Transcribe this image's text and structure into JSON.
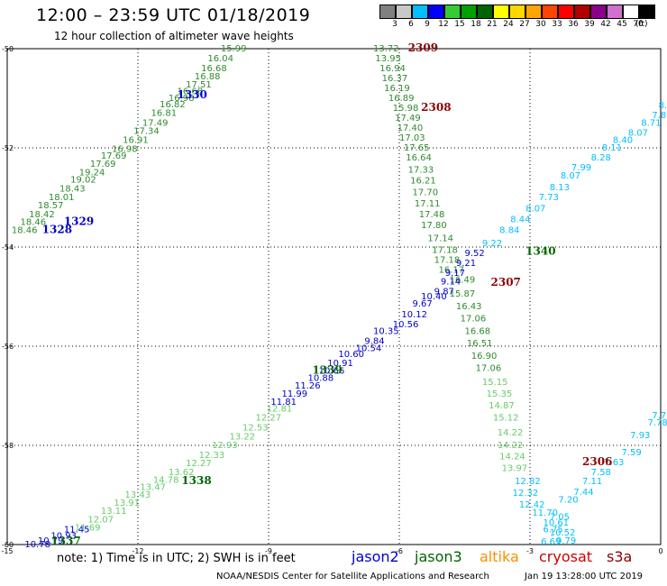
{
  "header": {
    "title": "12:00 – 23:59 UTC 01/18/2019",
    "subtitle": "12 hour collection of altimeter wave heights"
  },
  "colorbar": {
    "unit": "(ft)",
    "bins": [
      {
        "label": "3",
        "color": "#808080"
      },
      {
        "label": "6",
        "color": "#c8c8c8"
      },
      {
        "label": "9",
        "color": "#00bfff"
      },
      {
        "label": "12",
        "color": "#0000ff"
      },
      {
        "label": "15",
        "color": "#32cd32"
      },
      {
        "label": "18",
        "color": "#00a000"
      },
      {
        "label": "21",
        "color": "#006400"
      },
      {
        "label": "24",
        "color": "#ffff00"
      },
      {
        "label": "27",
        "color": "#ffd700"
      },
      {
        "label": "30",
        "color": "#ffa500"
      },
      {
        "label": "33",
        "color": "#ff4500"
      },
      {
        "label": "36",
        "color": "#ff0000"
      },
      {
        "label": "39",
        "color": "#b00000"
      },
      {
        "label": "42",
        "color": "#8b008b"
      },
      {
        "label": "45",
        "color": "#d070d0"
      },
      {
        "label": "70",
        "color": "#ffffff"
      },
      {
        "label": ">70",
        "color": "#000000"
      }
    ]
  },
  "axes": {
    "x_ticks": [
      "-15",
      "-12",
      "-9",
      "-6",
      "-3",
      "0"
    ],
    "y_ticks": [
      "-50",
      "-52",
      "-54",
      "-56",
      "-58",
      "-60"
    ]
  },
  "chart_data": {
    "type": "scatter",
    "xlim": [
      -15,
      0
    ],
    "ylim": [
      -60,
      -50
    ],
    "grid": true,
    "tracks": [
      {
        "id": "1330",
        "color": "#2e8b2e",
        "label_color": "#0000cc",
        "pass_label": {
          "text": "1330",
          "x": -11.1,
          "y": -51.0
        },
        "points": [
          {
            "x": -10.1,
            "y": -50.05,
            "v": "15.99"
          },
          {
            "x": -10.4,
            "y": -50.25,
            "v": "16.04"
          },
          {
            "x": -10.55,
            "y": -50.45,
            "v": "16.68"
          },
          {
            "x": -10.7,
            "y": -50.62,
            "v": "16.88"
          },
          {
            "x": -10.9,
            "y": -50.78,
            "v": "17.51"
          },
          {
            "x": -11.1,
            "y": -50.92,
            "v": "16.68"
          },
          {
            "x": -11.3,
            "y": -51.05,
            "v": "16.98"
          },
          {
            "x": -11.5,
            "y": -51.18,
            "v": "16.82"
          },
          {
            "x": -11.7,
            "y": -51.35,
            "v": "16.81"
          },
          {
            "x": -11.9,
            "y": -51.55,
            "v": "17.49"
          },
          {
            "x": -12.1,
            "y": -51.72,
            "v": "17.34"
          },
          {
            "x": -12.35,
            "y": -51.9,
            "v": "16.91"
          },
          {
            "x": -12.6,
            "y": -52.08,
            "v": "16.98"
          },
          {
            "x": -12.85,
            "y": -52.22,
            "v": "17.69"
          },
          {
            "x": -13.1,
            "y": -52.38,
            "v": "17.69"
          },
          {
            "x": -13.35,
            "y": -52.55,
            "v": "19.24"
          },
          {
            "x": -13.55,
            "y": -52.7,
            "v": "19.02"
          },
          {
            "x": -13.8,
            "y": -52.88,
            "v": "18.43"
          },
          {
            "x": -14.05,
            "y": -53.05,
            "v": "18.01"
          },
          {
            "x": -14.3,
            "y": -53.22,
            "v": "18.57"
          },
          {
            "x": -14.5,
            "y": -53.4,
            "v": "18.42"
          },
          {
            "x": -14.7,
            "y": -53.55,
            "v": "18.46"
          },
          {
            "x": -14.9,
            "y": -53.72,
            "v": "18.46"
          }
        ]
      },
      {
        "id": "1329",
        "color": "#0000cc",
        "label_color": "#0000cc",
        "pass_label": {
          "text": "1329",
          "x": -13.7,
          "y": -53.55
        },
        "points": []
      },
      {
        "id": "1328",
        "color": "#0000cc",
        "label_color": "#0000cc",
        "pass_label": {
          "text": "1328",
          "x": -14.2,
          "y": -53.72
        },
        "points": []
      },
      {
        "id": "2309",
        "color": "#2e8b2e",
        "label_color": "#8b0000",
        "pass_label": {
          "text": "2309",
          "x": -5.8,
          "y": -50.05
        },
        "points": [
          {
            "x": -6.6,
            "y": -50.05,
            "v": "13.72"
          },
          {
            "x": -6.55,
            "y": -50.25,
            "v": "13.95"
          },
          {
            "x": -6.45,
            "y": -50.45,
            "v": "16.94"
          },
          {
            "x": -6.4,
            "y": -50.65,
            "v": "16.37"
          },
          {
            "x": -6.35,
            "y": -50.85,
            "v": "16.19"
          },
          {
            "x": -6.25,
            "y": -51.05,
            "v": "16.89"
          },
          {
            "x": -6.15,
            "y": -51.25,
            "v": "15.98"
          },
          {
            "x": -6.1,
            "y": -51.45,
            "v": "17.49"
          },
          {
            "x": -6.05,
            "y": -51.65,
            "v": "17.40"
          },
          {
            "x": -6.0,
            "y": -51.85,
            "v": "17.03"
          },
          {
            "x": -5.9,
            "y": -52.05,
            "v": "17.65"
          },
          {
            "x": -5.85,
            "y": -52.25,
            "v": "16.64"
          },
          {
            "x": -5.8,
            "y": -52.5,
            "v": "17.33"
          },
          {
            "x": -5.75,
            "y": -52.72,
            "v": "16.21"
          },
          {
            "x": -5.7,
            "y": -52.95,
            "v": "17.70"
          },
          {
            "x": -5.65,
            "y": -53.18,
            "v": "17.11"
          },
          {
            "x": -5.55,
            "y": -53.4,
            "v": "17.48"
          },
          {
            "x": -5.5,
            "y": -53.62,
            "v": "17.80"
          },
          {
            "x": -5.35,
            "y": -53.88,
            "v": "17.14"
          },
          {
            "x": -5.25,
            "y": -54.12,
            "v": "17.18"
          },
          {
            "x": -5.2,
            "y": -54.32,
            "v": "17.18"
          },
          {
            "x": -5.1,
            "y": -54.52,
            "v": "16.17"
          },
          {
            "x": -4.85,
            "y": -54.72,
            "v": "16.49"
          },
          {
            "x": -4.85,
            "y": -55.0,
            "v": "15.87"
          },
          {
            "x": -4.7,
            "y": -55.25,
            "v": "16.43"
          },
          {
            "x": -4.6,
            "y": -55.5,
            "v": "17.06"
          },
          {
            "x": -4.5,
            "y": -55.75,
            "v": "16.68"
          },
          {
            "x": -4.45,
            "y": -56.0,
            "v": "16.51"
          },
          {
            "x": -4.35,
            "y": -56.25,
            "v": "16.90"
          },
          {
            "x": -4.25,
            "y": -56.5,
            "v": "17.06"
          }
        ]
      },
      {
        "id": "2308",
        "color": "#2e8b2e",
        "label_color": "#8b0000",
        "pass_label": {
          "text": "2308",
          "x": -5.5,
          "y": -51.25
        },
        "points": []
      },
      {
        "id": "2307",
        "color": "#66cc66",
        "label_color": "#8b0000",
        "pass_label": {
          "text": "2307",
          "x": -3.9,
          "y": -54.78
        },
        "points": [
          {
            "x": -4.1,
            "y": -56.78,
            "v": "15.15"
          },
          {
            "x": -4.0,
            "y": -57.02,
            "v": "15.35"
          },
          {
            "x": -3.95,
            "y": -57.25,
            "v": "14.87"
          },
          {
            "x": -3.85,
            "y": -57.5,
            "v": "15.12"
          },
          {
            "x": -3.75,
            "y": -57.8,
            "v": "14.22"
          },
          {
            "x": -3.75,
            "y": -58.05,
            "v": "14.22"
          },
          {
            "x": -3.7,
            "y": -58.28,
            "v": "14.24"
          },
          {
            "x": -3.65,
            "y": -58.52,
            "v": "13.97"
          }
        ]
      },
      {
        "id": "1340",
        "color": "#00bfff",
        "label_color": "#006400",
        "pass_label": {
          "text": "1340",
          "x": -3.1,
          "y": -54.15
        },
        "points": [
          {
            "x": -4.1,
            "y": -53.98,
            "v": "9.22"
          },
          {
            "x": -3.7,
            "y": -53.72,
            "v": "8.84"
          },
          {
            "x": -3.45,
            "y": -53.5,
            "v": "8.44"
          },
          {
            "x": -3.1,
            "y": -53.28,
            "v": "8.07"
          },
          {
            "x": -2.8,
            "y": -53.05,
            "v": "7.73"
          },
          {
            "x": -2.55,
            "y": -52.85,
            "v": "8.13"
          },
          {
            "x": -2.3,
            "y": -52.62,
            "v": "8.07"
          },
          {
            "x": -2.05,
            "y": -52.45,
            "v": "7.99"
          },
          {
            "x": -1.6,
            "y": -52.25,
            "v": "8.28"
          },
          {
            "x": -1.35,
            "y": -52.05,
            "v": "8.11"
          },
          {
            "x": -1.1,
            "y": -51.9,
            "v": "8.40"
          },
          {
            "x": -0.75,
            "y": -51.75,
            "v": "8.07"
          },
          {
            "x": -0.45,
            "y": -51.55,
            "v": "8.71"
          },
          {
            "x": -0.2,
            "y": -51.4,
            "v": "7.89"
          },
          {
            "x": -0.05,
            "y": -51.2,
            "v": "8.81"
          }
        ]
      },
      {
        "id": "1339",
        "color": "#0000cc",
        "label_color": "#006400",
        "pass_label": {
          "text": "1339",
          "x": -8.0,
          "y": -56.55
        },
        "points": [
          {
            "x": -4.5,
            "y": -54.18,
            "v": "9.52"
          },
          {
            "x": -4.7,
            "y": -54.38,
            "v": "9.21"
          },
          {
            "x": -4.95,
            "y": -54.58,
            "v": "9.17"
          },
          {
            "x": -5.05,
            "y": -54.75,
            "v": "9.14"
          },
          {
            "x": -5.2,
            "y": -54.95,
            "v": "9.87"
          },
          {
            "x": -5.5,
            "y": -55.05,
            "v": "10.40"
          },
          {
            "x": -5.7,
            "y": -55.2,
            "v": "9.67"
          },
          {
            "x": -5.95,
            "y": -55.42,
            "v": "10.12"
          },
          {
            "x": -6.15,
            "y": -55.62,
            "v": "10.56"
          },
          {
            "x": -6.6,
            "y": -55.75,
            "v": "10.35"
          },
          {
            "x": -6.8,
            "y": -55.95,
            "v": "9.84"
          },
          {
            "x": -7.0,
            "y": -56.1,
            "v": "10.54"
          },
          {
            "x": -7.4,
            "y": -56.22,
            "v": "10.60"
          },
          {
            "x": -7.65,
            "y": -56.4,
            "v": "10.91"
          },
          {
            "x": -7.85,
            "y": -56.55,
            "v": "10.66"
          },
          {
            "x": -8.1,
            "y": -56.7,
            "v": "10.88"
          },
          {
            "x": -8.4,
            "y": -56.85,
            "v": "11.26"
          },
          {
            "x": -8.7,
            "y": -57.02,
            "v": "11.99"
          },
          {
            "x": -8.95,
            "y": -57.18,
            "v": "11.81"
          }
        ]
      },
      {
        "id": "1338",
        "color": "#66cc66",
        "label_color": "#006400",
        "pass_label": {
          "text": "1338",
          "x": -11.0,
          "y": -58.78
        },
        "points": [
          {
            "x": -9.05,
            "y": -57.32,
            "v": "12.81"
          },
          {
            "x": -9.3,
            "y": -57.5,
            "v": "12.27"
          },
          {
            "x": -9.6,
            "y": -57.7,
            "v": "12.53"
          },
          {
            "x": -9.9,
            "y": -57.88,
            "v": "13.22"
          },
          {
            "x": -10.3,
            "y": -58.05,
            "v": "12.93"
          },
          {
            "x": -10.6,
            "y": -58.25,
            "v": "12.33"
          },
          {
            "x": -10.9,
            "y": -58.42,
            "v": "12.27"
          },
          {
            "x": -11.3,
            "y": -58.6,
            "v": "13.62"
          },
          {
            "x": -11.65,
            "y": -58.75,
            "v": "14.78"
          },
          {
            "x": -11.95,
            "y": -58.9,
            "v": "13.47"
          },
          {
            "x": -12.3,
            "y": -59.05,
            "v": "13.43"
          },
          {
            "x": -12.55,
            "y": -59.22,
            "v": "13.91"
          },
          {
            "x": -12.85,
            "y": -59.38,
            "v": "13.11"
          },
          {
            "x": -13.15,
            "y": -59.55,
            "v": "12.07"
          },
          {
            "x": -13.45,
            "y": -59.72,
            "v": "11.69"
          }
        ]
      },
      {
        "id": "1337",
        "color": "#0000cc",
        "label_color": "#006400",
        "pass_label": {
          "text": "1337",
          "x": -14.0,
          "y": -60.0
        },
        "points": [
          {
            "x": -13.7,
            "y": -59.75,
            "v": "11.45"
          },
          {
            "x": -14.0,
            "y": -59.88,
            "v": "10.93"
          },
          {
            "x": -14.3,
            "y": -59.98,
            "v": "10.79"
          },
          {
            "x": -14.6,
            "y": -60.05,
            "v": "10.78"
          }
        ]
      },
      {
        "id": "2306",
        "color": "#00bfff",
        "label_color": "#8b0000",
        "pass_label": {
          "text": "2306",
          "x": -1.8,
          "y": -58.4
        },
        "points": [
          {
            "x": -0.3,
            "y": -57.6,
            "v": "7.78"
          },
          {
            "x": -0.2,
            "y": -57.45,
            "v": "7.75"
          },
          {
            "x": -0.7,
            "y": -57.85,
            "v": "7.93"
          },
          {
            "x": -0.9,
            "y": -58.2,
            "v": "7.59"
          },
          {
            "x": -1.3,
            "y": -58.4,
            "v": "7.63"
          },
          {
            "x": -1.6,
            "y": -58.6,
            "v": "7.58"
          },
          {
            "x": -1.8,
            "y": -58.78,
            "v": "7.11"
          },
          {
            "x": -2.0,
            "y": -59.0,
            "v": "7.44"
          },
          {
            "x": -2.35,
            "y": -59.15,
            "v": "7.20"
          },
          {
            "x": -2.55,
            "y": -59.5,
            "v": "7.05"
          },
          {
            "x": -2.7,
            "y": -59.75,
            "v": "6.75"
          },
          {
            "x": -2.75,
            "y": -60.0,
            "v": "6.69"
          },
          {
            "x": -3.35,
            "y": -58.78,
            "v": "12.82"
          },
          {
            "x": -3.4,
            "y": -59.02,
            "v": "12.32"
          },
          {
            "x": -3.25,
            "y": -59.25,
            "v": "12.42"
          },
          {
            "x": -2.95,
            "y": -59.42,
            "v": "11.70"
          },
          {
            "x": -2.7,
            "y": -59.62,
            "v": "10.61"
          },
          {
            "x": -2.55,
            "y": -59.82,
            "v": "10.52"
          },
          {
            "x": -2.4,
            "y": -59.98,
            "v": "9.79"
          }
        ]
      }
    ]
  },
  "footer": {
    "note": "note:  1) Time is in UTC;  2) SWH is in feet",
    "legend": [
      {
        "text": "jason2",
        "color": "#0000cc"
      },
      {
        "text": "jason3",
        "color": "#006400"
      },
      {
        "text": "altika",
        "color": "#ff8c00"
      },
      {
        "text": "cryosat",
        "color": "#cc0000"
      },
      {
        "text": "s3a",
        "color": "#8b0000"
      }
    ],
    "credit": "NOAA/NESDIS Center for Satellite Applications and Research",
    "timestamp": "Jan 19 13:28:00 UTC 2019"
  }
}
